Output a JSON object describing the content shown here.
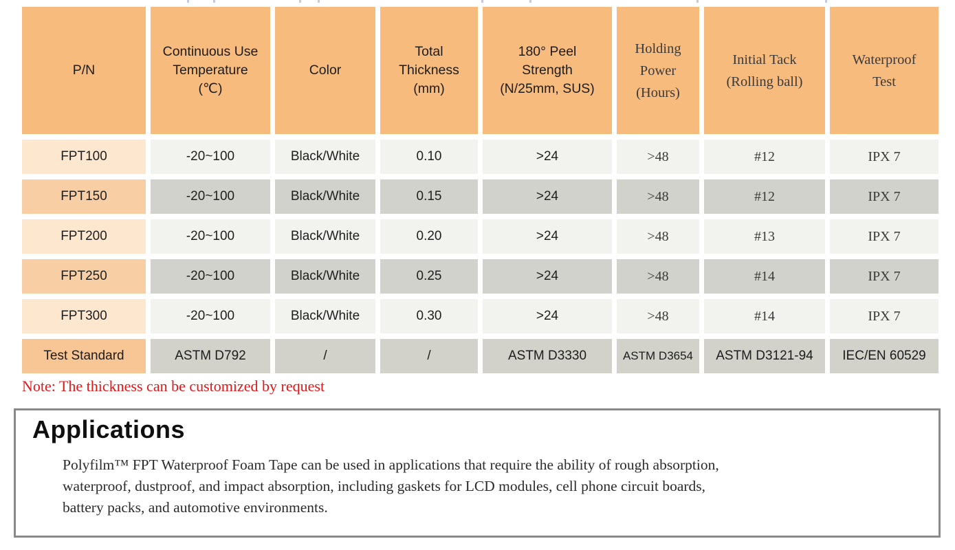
{
  "colors": {
    "header_bg": "#F8BB7E",
    "row_peach_light": "#FDE7CF",
    "row_peach_dark": "#F8CFA4",
    "footer_peach": "#F7C694",
    "row_gray_light": "#F2F2EE",
    "row_gray_dark": "#D2D2CC",
    "footer_gray": "#D2D2CB",
    "note_red": "#E81416",
    "box_border": "#8A8A8A"
  },
  "table": {
    "columns": [
      {
        "lines": [
          "P/N"
        ],
        "serif": false
      },
      {
        "lines": [
          "Continuous Use",
          "Temperature",
          "(℃)"
        ],
        "serif": false
      },
      {
        "lines": [
          "Color"
        ],
        "serif": false
      },
      {
        "lines": [
          "Total",
          "Thickness",
          "(mm)"
        ],
        "serif": false
      },
      {
        "lines": [
          "180° Peel",
          "Strength",
          "(N/25mm, SUS)"
        ],
        "serif": false
      },
      {
        "lines": [
          "Holding",
          "Power",
          "(Hours)"
        ],
        "serif": true
      },
      {
        "lines": [
          "Initial Tack",
          "(Rolling ball)"
        ],
        "serif": true
      },
      {
        "lines": [
          "Waterproof",
          "Test"
        ],
        "serif": true
      }
    ],
    "serif_data_columns": [
      5,
      6,
      7
    ],
    "rows": [
      [
        "FPT100",
        "-20~100",
        "Black/White",
        "0.10",
        ">24",
        ">48",
        "#12",
        "IPX 7"
      ],
      [
        "FPT150",
        "-20~100",
        "Black/White",
        "0.15",
        ">24",
        ">48",
        "#12",
        "IPX 7"
      ],
      [
        "FPT200",
        "-20~100",
        "Black/White",
        "0.20",
        ">24",
        ">48",
        "#13",
        "IPX 7"
      ],
      [
        "FPT250",
        "-20~100",
        "Black/White",
        "0.25",
        ">24",
        ">48",
        "#14",
        "IPX 7"
      ],
      [
        "FPT300",
        "-20~100",
        "Black/White",
        "0.30",
        ">24",
        ">48",
        "#14",
        "IPX 7"
      ]
    ],
    "footer_row": [
      "Test Standard",
      "ASTM D792",
      "/",
      "/",
      "ASTM D3330",
      "ASTM D3654",
      "ASTM D3121-94",
      "IEC/EN 60529"
    ]
  },
  "note": "Note: The thickness can be customized by request",
  "applications": {
    "title": "Applications",
    "body_lines": [
      "Polyfilm™ FPT Waterproof Foam Tape can be used in applications that require the ability of rough absorption,",
      "waterproof, dustproof, and impact absorption, including gaskets for LCD modules, cell phone circuit boards,",
      "battery packs, and automotive environments."
    ]
  }
}
